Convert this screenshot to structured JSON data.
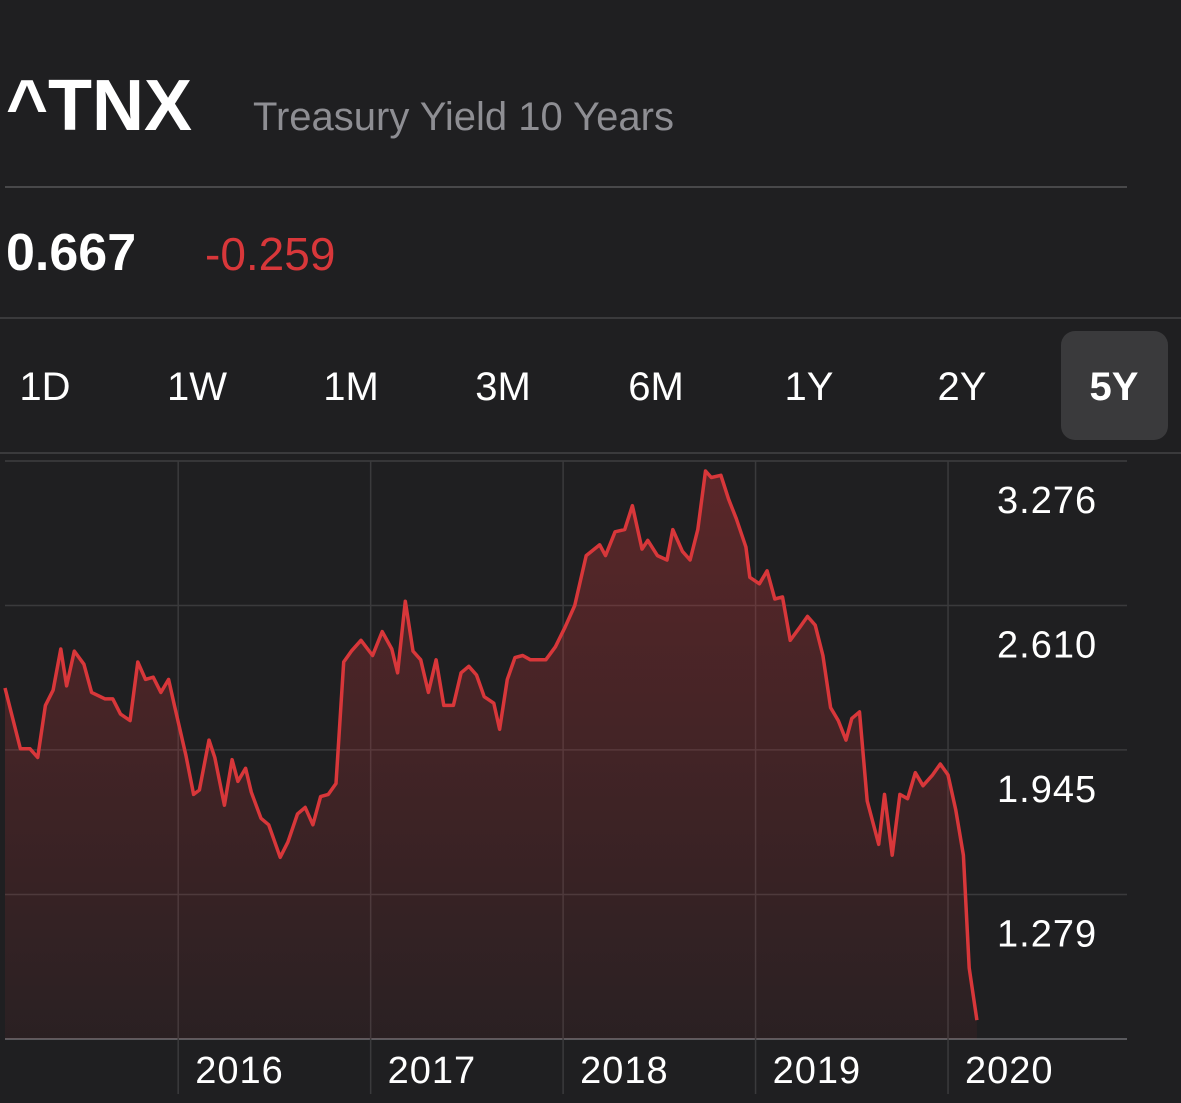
{
  "header": {
    "symbol": "^TNX",
    "name": "Treasury Yield 10 Years",
    "price": "0.667",
    "change": "-0.259"
  },
  "tabs": [
    "1D",
    "1W",
    "1M",
    "3M",
    "6M",
    "1Y",
    "2Y",
    "5Y"
  ],
  "selected_tab": 7,
  "chart_data": {
    "type": "line",
    "color": "#d8373a",
    "grid": true,
    "x": [
      2015.1,
      2015.18,
      2015.23,
      2015.27,
      2015.31,
      2015.35,
      2015.39,
      2015.42,
      2015.46,
      2015.51,
      2015.55,
      2015.62,
      2015.66,
      2015.7,
      2015.75,
      2015.79,
      2015.83,
      2015.87,
      2015.91,
      2015.95,
      2015.98,
      2016.04,
      2016.08,
      2016.11,
      2016.16,
      2016.19,
      2016.24,
      2016.28,
      2016.31,
      2016.35,
      2016.38,
      2016.43,
      2016.47,
      2016.53,
      2016.57,
      2016.62,
      2016.66,
      2016.7,
      2016.74,
      2016.78,
      2016.82,
      2016.86,
      2016.9,
      2016.95,
      2017.01,
      2017.06,
      2017.11,
      2017.14,
      2017.18,
      2017.22,
      2017.26,
      2017.3,
      2017.34,
      2017.38,
      2017.43,
      2017.47,
      2017.51,
      2017.55,
      2017.59,
      2017.64,
      2017.67,
      2017.71,
      2017.75,
      2017.79,
      2017.83,
      2017.87,
      2017.91,
      2017.96,
      2018.01,
      2018.06,
      2018.12,
      2018.19,
      2018.22,
      2018.27,
      2018.32,
      2018.36,
      2018.41,
      2018.44,
      2018.49,
      2018.54,
      2018.57,
      2018.62,
      2018.66,
      2018.7,
      2018.74,
      2018.77,
      2018.82,
      2018.86,
      2018.9,
      2018.95,
      2018.97,
      2019.02,
      2019.06,
      2019.1,
      2019.14,
      2019.18,
      2019.23,
      2019.27,
      2019.31,
      2019.35,
      2019.39,
      2019.43,
      2019.47,
      2019.5,
      2019.54,
      2019.58,
      2019.64,
      2019.67,
      2019.71,
      2019.75,
      2019.79,
      2019.83,
      2019.87,
      2019.92,
      2019.96,
      2020.0,
      2020.04,
      2020.08,
      2020.11,
      2020.15
    ],
    "values": [
      2.23,
      1.95,
      1.95,
      1.91,
      2.15,
      2.22,
      2.41,
      2.24,
      2.4,
      2.34,
      2.21,
      2.18,
      2.18,
      2.11,
      2.08,
      2.35,
      2.27,
      2.28,
      2.21,
      2.27,
      2.15,
      1.92,
      1.74,
      1.76,
      1.99,
      1.91,
      1.69,
      1.9,
      1.8,
      1.86,
      1.75,
      1.63,
      1.6,
      1.45,
      1.52,
      1.65,
      1.68,
      1.6,
      1.73,
      1.74,
      1.79,
      2.35,
      2.4,
      2.45,
      2.38,
      2.49,
      2.41,
      2.3,
      2.63,
      2.4,
      2.36,
      2.21,
      2.36,
      2.15,
      2.15,
      2.3,
      2.33,
      2.29,
      2.19,
      2.16,
      2.04,
      2.27,
      2.37,
      2.38,
      2.36,
      2.36,
      2.36,
      2.42,
      2.51,
      2.61,
      2.84,
      2.89,
      2.84,
      2.95,
      2.96,
      3.07,
      2.87,
      2.91,
      2.84,
      2.82,
      2.96,
      2.86,
      2.82,
      2.96,
      3.23,
      3.2,
      3.21,
      3.1,
      3.01,
      2.88,
      2.74,
      2.71,
      2.77,
      2.64,
      2.65,
      2.45,
      2.51,
      2.56,
      2.52,
      2.38,
      2.14,
      2.08,
      1.99,
      2.09,
      2.12,
      1.71,
      1.51,
      1.74,
      1.46,
      1.74,
      1.72,
      1.84,
      1.78,
      1.83,
      1.88,
      1.83,
      1.67,
      1.46,
      0.94,
      0.7
    ],
    "xlim": [
      2015.1,
      2020.93
    ],
    "xticks": [
      2016,
      2017,
      2018,
      2019,
      2020
    ],
    "ylim": [
      0.613,
      3.276
    ],
    "yticks": [
      3.276,
      {
        "value": 2.61,
        "label": "2.610"
      },
      1.945,
      1.279
    ]
  }
}
